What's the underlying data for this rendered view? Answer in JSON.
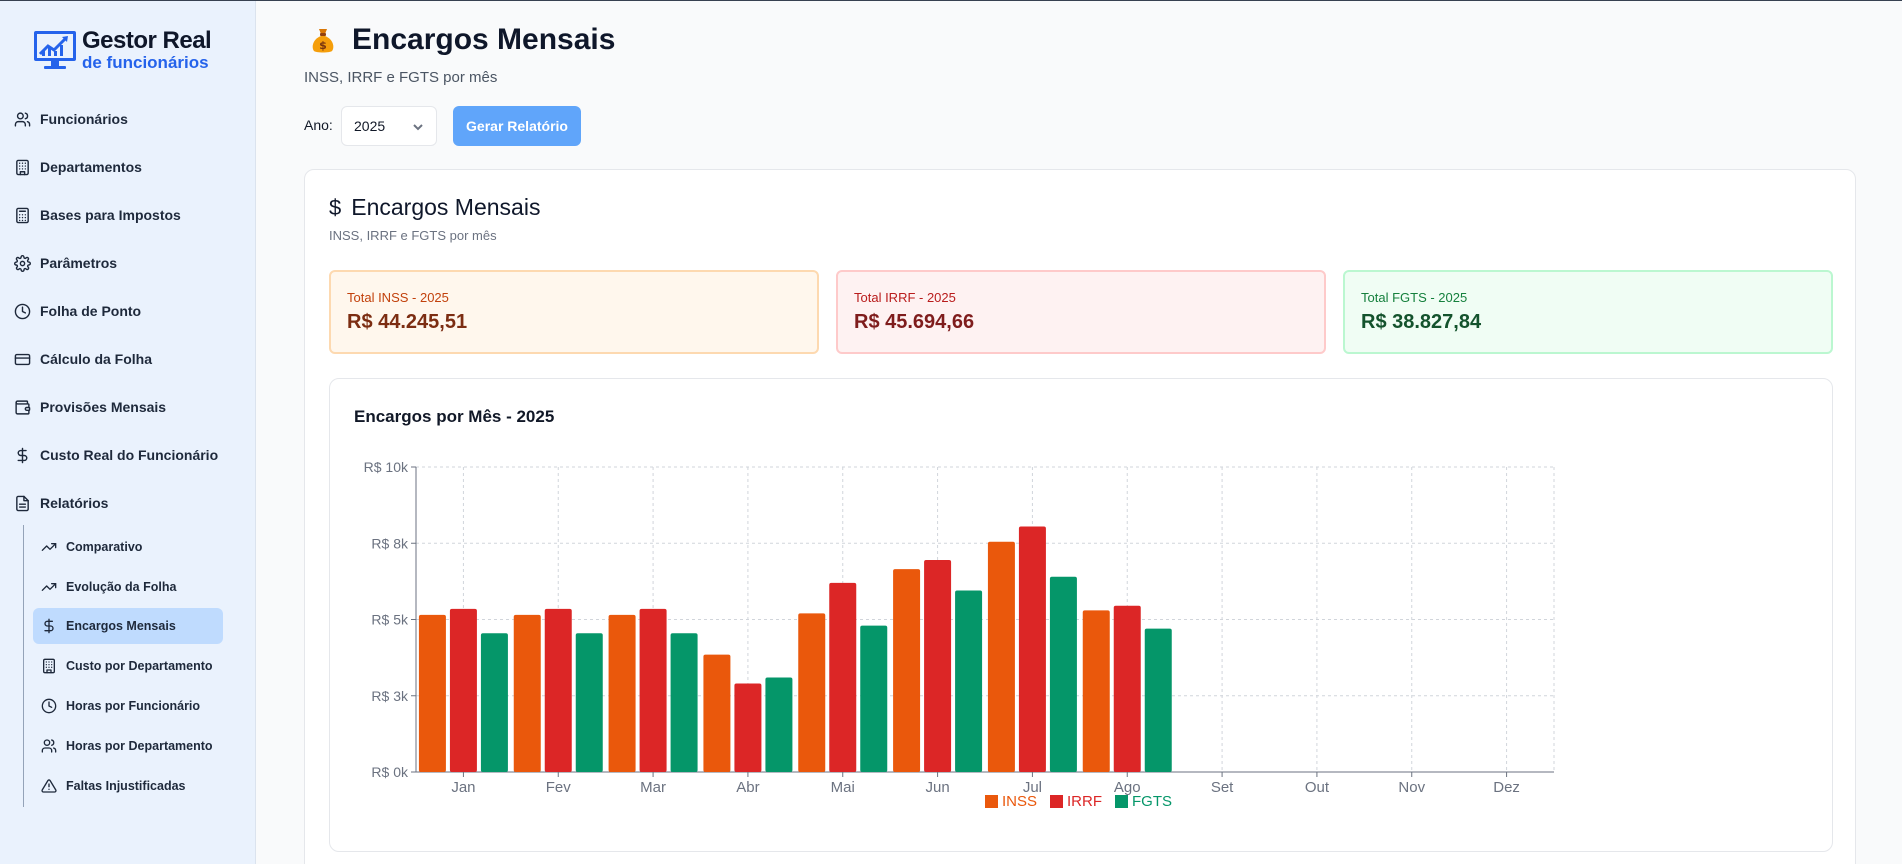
{
  "logo": {
    "title": "Gestor Real",
    "subtitle": "de funcionários"
  },
  "sidebar": {
    "items": [
      {
        "label": "Funcionários",
        "icon": "users-icon"
      },
      {
        "label": "Departamentos",
        "icon": "building-icon"
      },
      {
        "label": "Bases para Impostos",
        "icon": "calculator-icon"
      },
      {
        "label": "Parâmetros",
        "icon": "gear-icon"
      },
      {
        "label": "Folha de Ponto",
        "icon": "clock-icon"
      },
      {
        "label": "Cálculo da Folha",
        "icon": "credit-card-icon"
      },
      {
        "label": "Provisões Mensais",
        "icon": "wallet-icon"
      },
      {
        "label": "Custo Real do Funcionário",
        "icon": "dollar-icon"
      },
      {
        "label": "Relatórios",
        "icon": "document-icon"
      }
    ],
    "subitems": [
      {
        "label": "Comparativo",
        "icon": "trending-up-icon"
      },
      {
        "label": "Evolução da Folha",
        "icon": "trending-up-icon"
      },
      {
        "label": "Encargos Mensais",
        "icon": "dollar-icon",
        "active": true
      },
      {
        "label": "Custo por Departamento",
        "icon": "building-icon"
      },
      {
        "label": "Horas por Funcionário",
        "icon": "clock-icon"
      },
      {
        "label": "Horas por Departamento",
        "icon": "users-icon"
      },
      {
        "label": "Faltas Injustificadas",
        "icon": "warning-icon"
      }
    ]
  },
  "header": {
    "title": "Encargos Mensais",
    "subtitle": "INSS, IRRF e FGTS por mês",
    "year_label": "Ano:",
    "year_value": "2025",
    "generate_label": "Gerar Relatório"
  },
  "card": {
    "title": "Encargos Mensais",
    "subtitle": "INSS, IRRF e FGTS por mês"
  },
  "stats": {
    "inss": {
      "label": "Total INSS - 2025",
      "value": "R$ 44.245,51"
    },
    "irrf": {
      "label": "Total IRRF - 2025",
      "value": "R$ 45.694,66"
    },
    "fgts": {
      "label": "Total FGTS - 2025",
      "value": "R$ 38.827,84"
    }
  },
  "colors": {
    "inss": "#ea580c",
    "irrf": "#dc2626",
    "fgts": "#059669"
  },
  "chart_data": {
    "type": "bar",
    "title": "Encargos por Mês - 2025",
    "categories": [
      "Jan",
      "Fev",
      "Mar",
      "Abr",
      "Mai",
      "Jun",
      "Jul",
      "Ago",
      "Set",
      "Out",
      "Nov",
      "Dez"
    ],
    "ylim": [
      0,
      10000
    ],
    "yticks": [
      0,
      2500,
      5000,
      7500,
      10000
    ],
    "ytick_labels": [
      "R$ 0k",
      "R$ 3k",
      "R$ 5k",
      "R$ 8k",
      "R$ 10k"
    ],
    "grid": true,
    "legend": "bottom-center",
    "series": [
      {
        "name": "INSS",
        "values": [
          5150,
          5150,
          5150,
          3850,
          5200,
          6650,
          7550,
          5300,
          null,
          null,
          null,
          null
        ]
      },
      {
        "name": "IRRF",
        "values": [
          5350,
          5350,
          5350,
          2900,
          6200,
          6950,
          8050,
          5450,
          null,
          null,
          null,
          null
        ]
      },
      {
        "name": "FGTS",
        "values": [
          4550,
          4550,
          4550,
          3100,
          4800,
          5950,
          6400,
          4700,
          null,
          null,
          null,
          null
        ]
      }
    ]
  }
}
